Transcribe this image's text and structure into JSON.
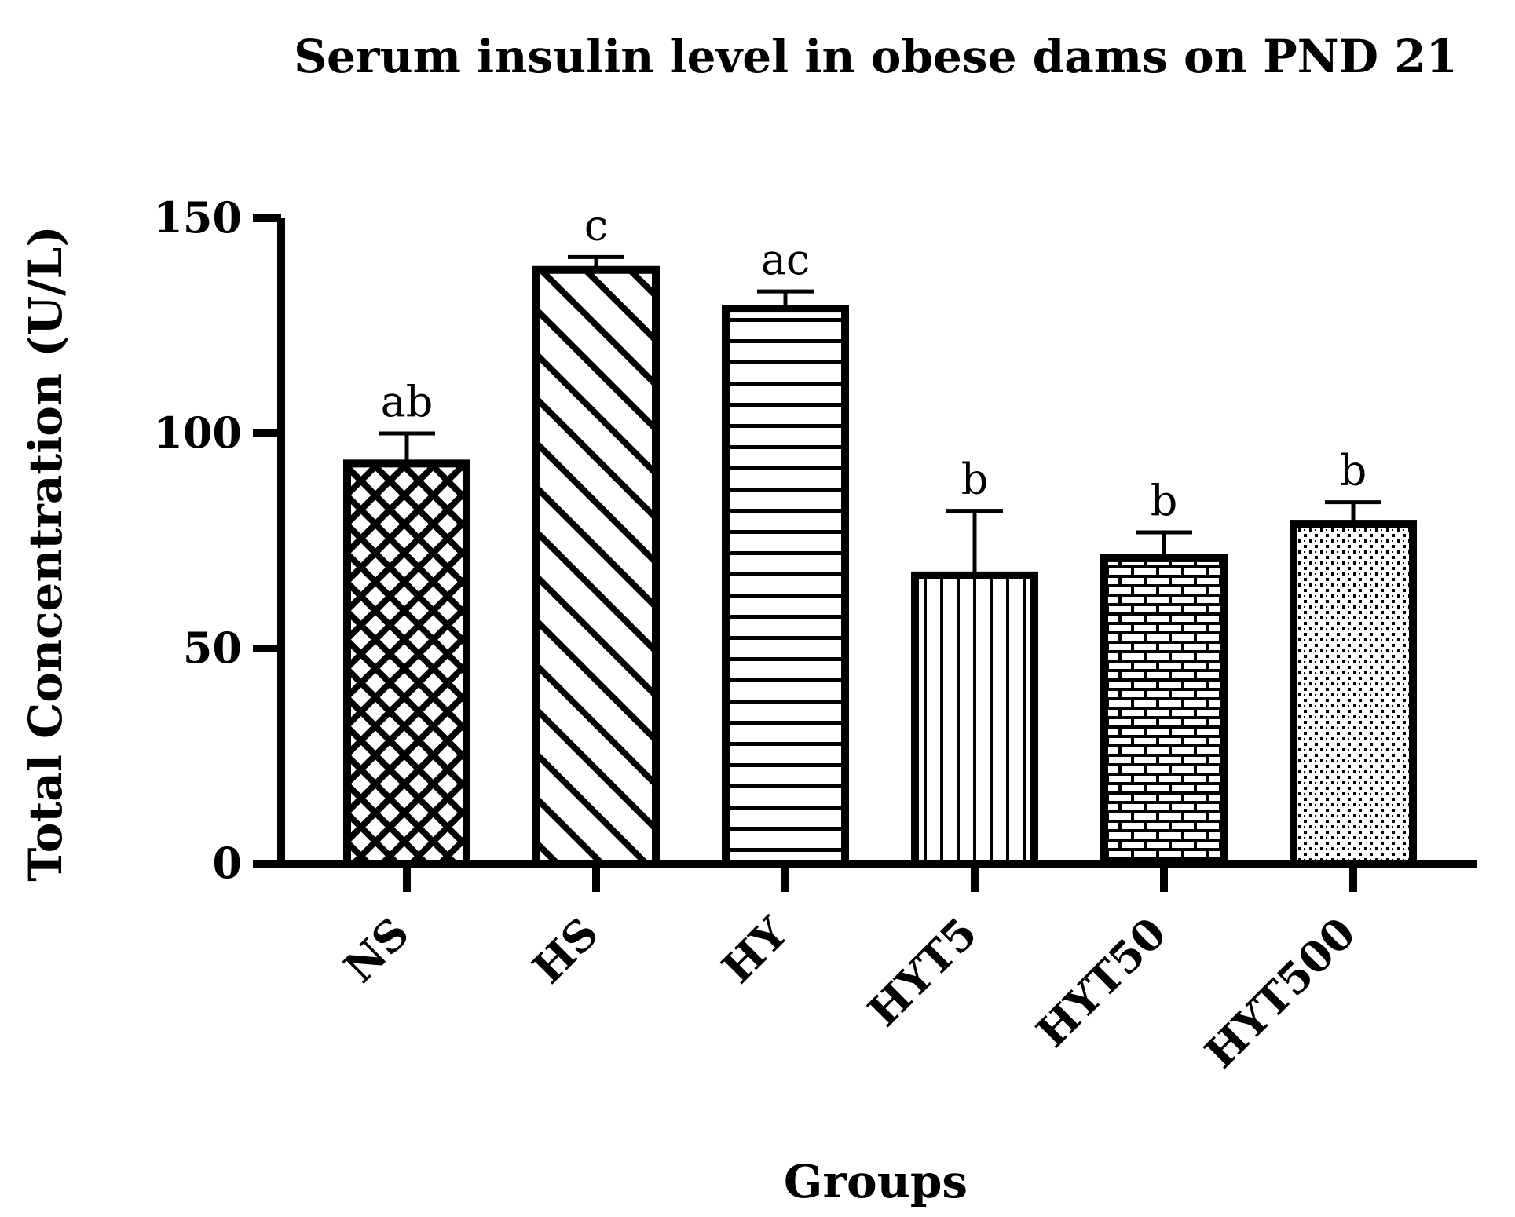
{
  "chart_data": {
    "type": "bar",
    "title": "Serum insulin level in obese dams on PND 21",
    "xlabel": "Groups",
    "ylabel": "Total Concentration (U/L)",
    "ylim": [
      0,
      150
    ],
    "yticks": [
      0,
      50,
      100,
      150
    ],
    "categories": [
      "NS",
      "HS",
      "HY",
      "HYT5",
      "HYT50",
      "HYT500"
    ],
    "values": [
      93,
      138,
      129,
      67,
      71,
      79
    ],
    "errors": [
      7,
      3,
      4,
      15,
      6,
      5
    ],
    "significance": [
      "ab",
      "c",
      "ac",
      "b",
      "b",
      "b"
    ],
    "patterns": [
      "crosshatch",
      "diagonal",
      "horizontal",
      "vertical",
      "brick",
      "dots"
    ],
    "colors": {
      "ink": "#000000",
      "fill": "#ffffff"
    },
    "grid": false,
    "legend": "none"
  }
}
